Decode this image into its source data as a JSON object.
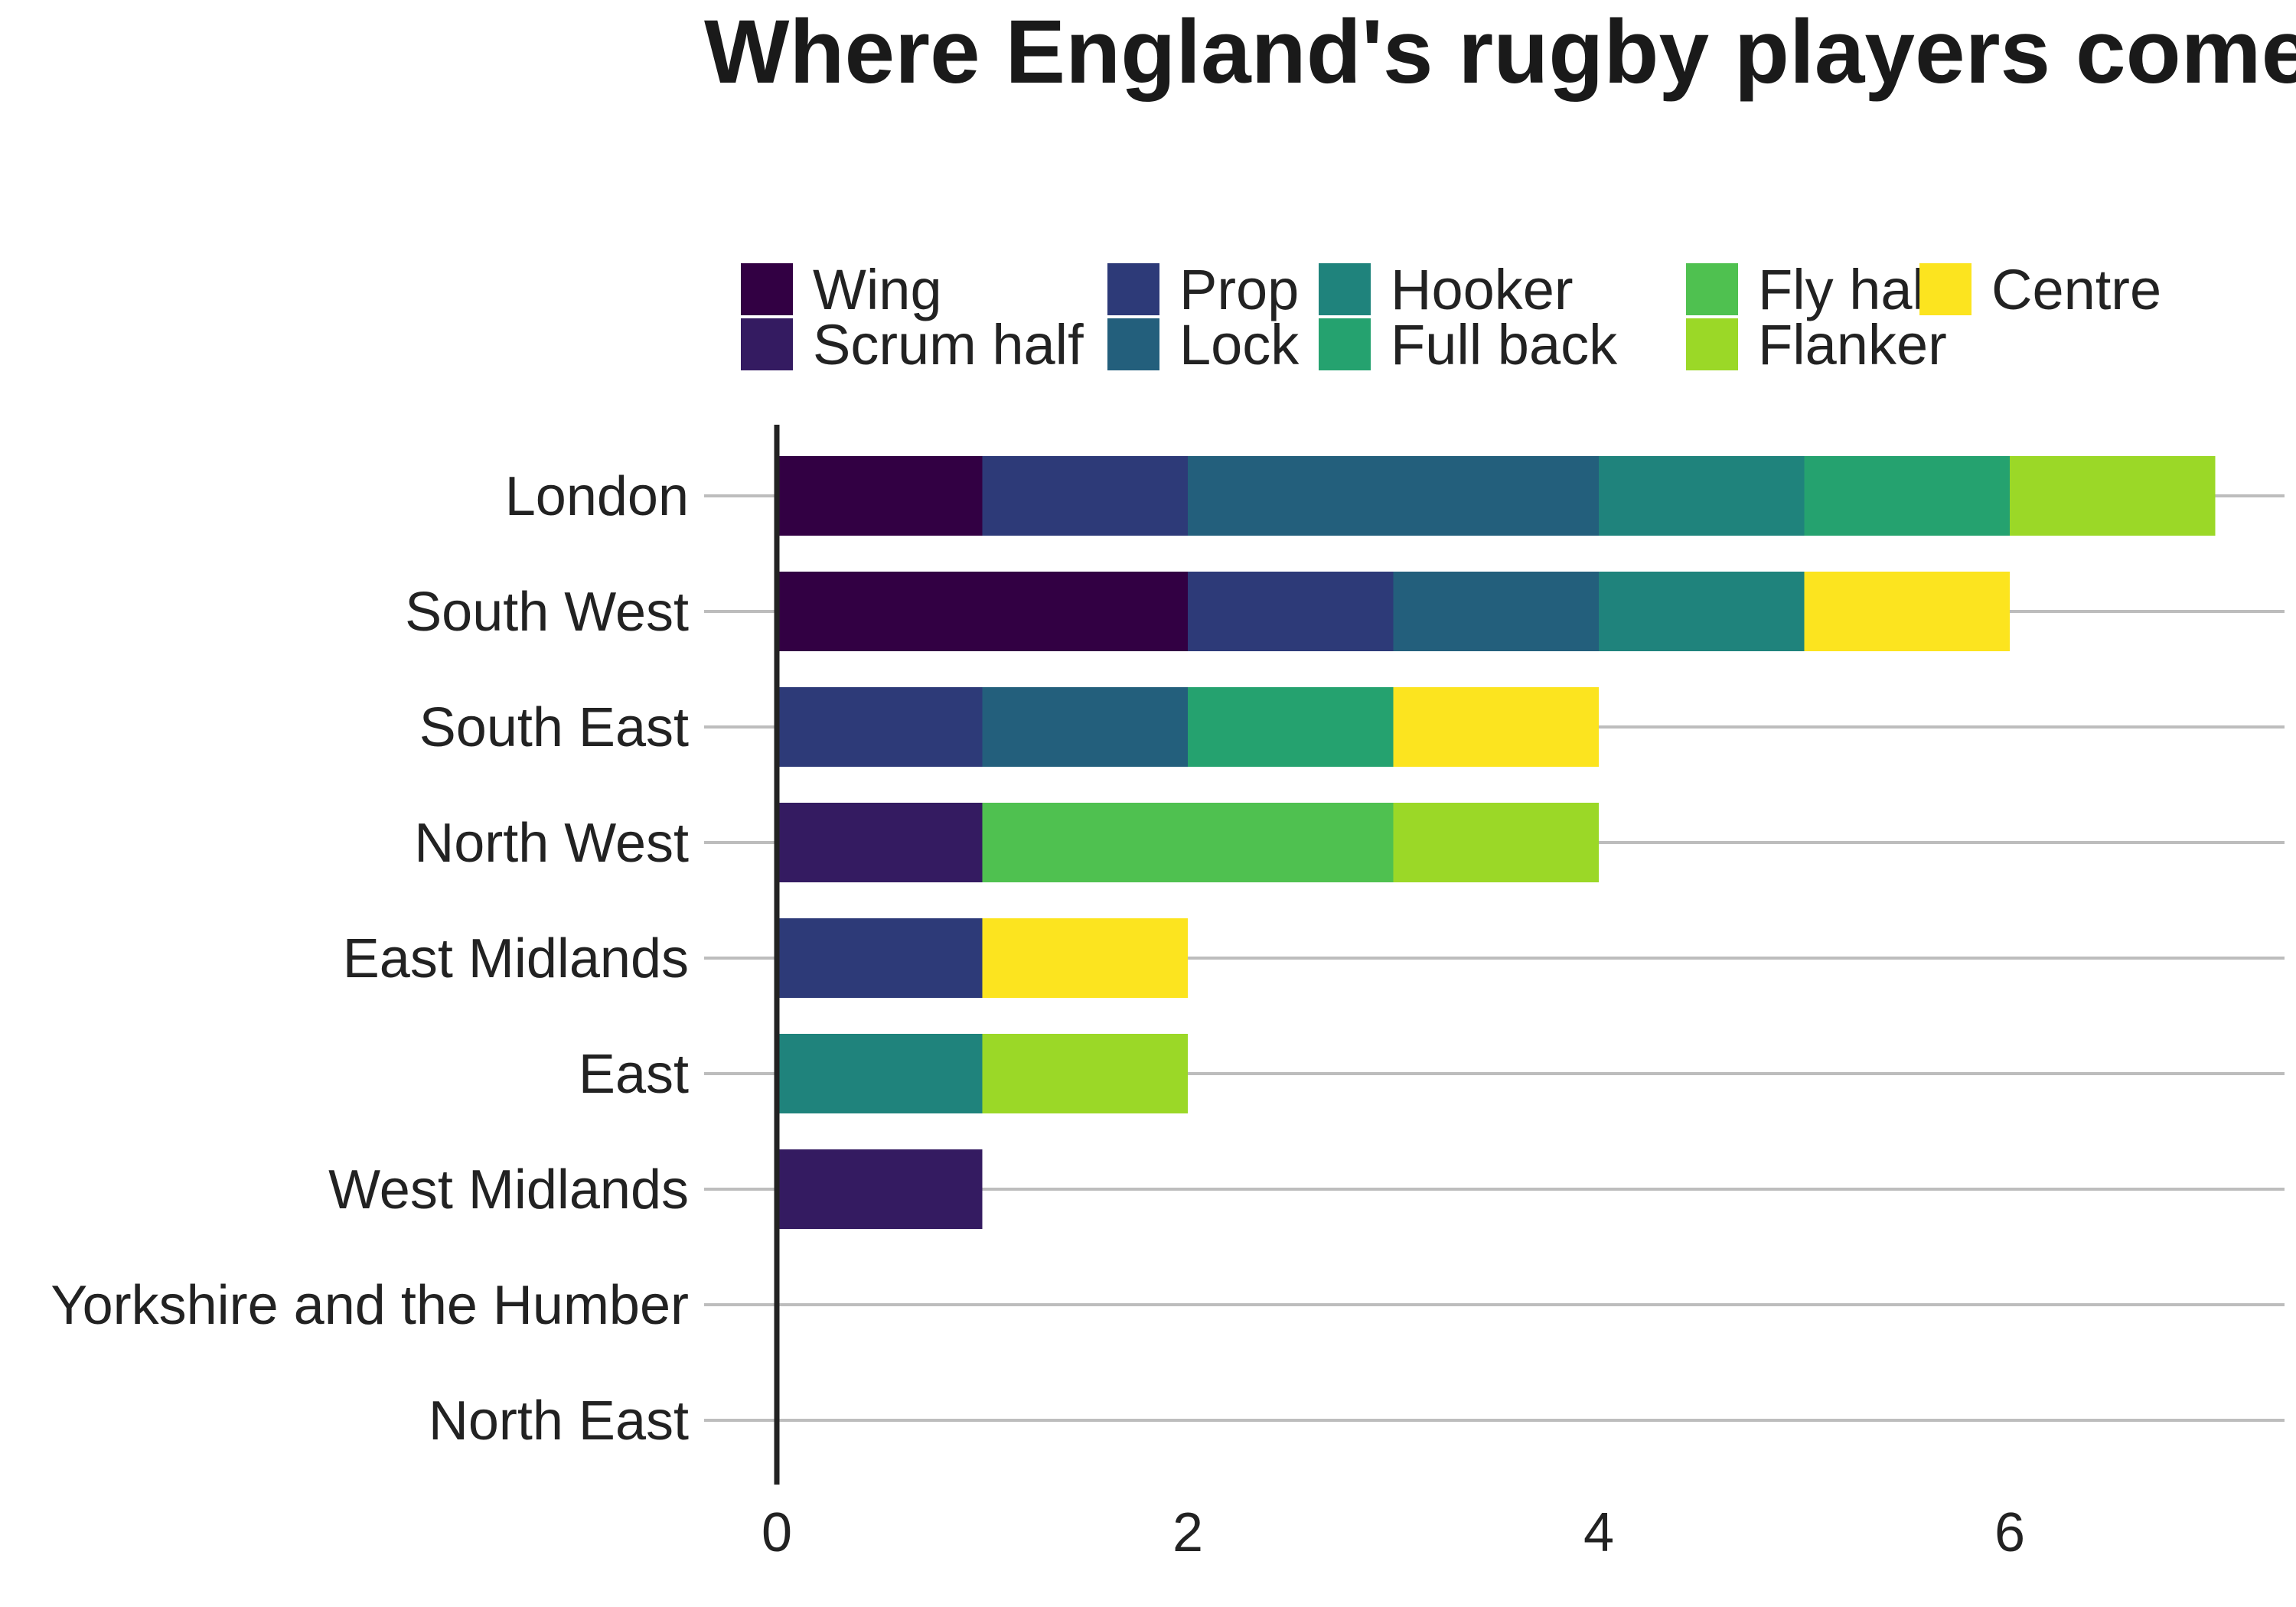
{
  "title": "Where England's rugby players come from",
  "chart_data": {
    "type": "bar",
    "orientation": "horizontal",
    "stacked": true,
    "title": "Where England's rugby players come from",
    "xlabel": "",
    "ylabel": "",
    "xlim": [
      0,
      7.3
    ],
    "x_ticks": [
      0,
      2,
      4,
      6
    ],
    "grid": "horizontal",
    "legend_position": "top",
    "categories": [
      "London",
      "South West",
      "South East",
      "North West",
      "East Midlands",
      "East",
      "West Midlands",
      "Yorkshire and the Humber",
      "North East"
    ],
    "series": [
      {
        "name": "Wing",
        "color": "#320043",
        "values": [
          1,
          2,
          0,
          0,
          0,
          0,
          0,
          0,
          0
        ]
      },
      {
        "name": "Scrum half",
        "color": "#341b61",
        "values": [
          0,
          0,
          0,
          1,
          0,
          0,
          1,
          0,
          0
        ]
      },
      {
        "name": "Prop",
        "color": "#2d3a78",
        "values": [
          1,
          1,
          1,
          0,
          1,
          0,
          0,
          0,
          0
        ]
      },
      {
        "name": "Lock",
        "color": "#235f7c",
        "values": [
          2,
          1,
          1,
          0,
          0,
          0,
          0,
          0,
          0
        ]
      },
      {
        "name": "Hooker",
        "color": "#1f837c",
        "values": [
          1,
          1,
          0,
          0,
          0,
          1,
          0,
          0,
          0
        ]
      },
      {
        "name": "Full back",
        "color": "#25a26f",
        "values": [
          1,
          0,
          1,
          0,
          0,
          0,
          0,
          0,
          0
        ]
      },
      {
        "name": "Fly half",
        "color": "#4fc150",
        "values": [
          0,
          0,
          0,
          2,
          0,
          0,
          0,
          0,
          0
        ]
      },
      {
        "name": "Flanker",
        "color": "#9bd827",
        "values": [
          1,
          0,
          0,
          1,
          0,
          1,
          0,
          0,
          0
        ]
      },
      {
        "name": "Centre",
        "color": "#fce41f",
        "values": [
          0,
          1,
          1,
          0,
          1,
          0,
          0,
          0,
          0
        ]
      }
    ]
  }
}
